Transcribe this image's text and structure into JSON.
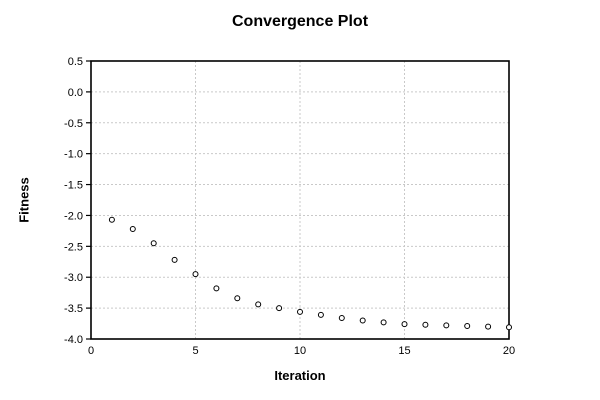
{
  "chart_data": {
    "type": "scatter",
    "title": "Convergence Plot",
    "xlabel": "Iteration",
    "ylabel": "Fitness",
    "x": [
      1,
      2,
      3,
      4,
      5,
      6,
      7,
      8,
      9,
      10,
      11,
      12,
      13,
      14,
      15,
      16,
      17,
      18,
      19,
      20
    ],
    "y": [
      -2.07,
      -2.22,
      -2.45,
      -2.72,
      -2.95,
      -3.18,
      -3.34,
      -3.44,
      -3.5,
      -3.56,
      -3.61,
      -3.66,
      -3.7,
      -3.73,
      -3.76,
      -3.77,
      -3.78,
      -3.79,
      -3.8,
      -3.81
    ],
    "xlim": [
      0,
      20
    ],
    "ylim": [
      -4.0,
      0.5
    ],
    "xticks": [
      0,
      5,
      10,
      15,
      20
    ],
    "xtick_labels": [
      "0",
      "5",
      "10",
      "15",
      "20"
    ],
    "yticks": [
      0.5,
      0.0,
      -0.5,
      -1.0,
      -1.5,
      -2.0,
      -2.5,
      -3.0,
      -3.5,
      -4.0
    ],
    "ytick_labels": [
      "0.5",
      "0.0",
      "-0.5",
      "-1.0",
      "-1.5",
      "-2.0",
      "-2.5",
      "-3.0",
      "-3.5",
      "-4.0"
    ],
    "grid": true,
    "grid_style": "dotted",
    "legend": "none",
    "marker": "open-circle",
    "colors": {
      "background": "#ffffff",
      "text": "#000000",
      "axis": "#000000",
      "grid": "#c9c9c9",
      "marker_stroke": "#000000",
      "marker_fill": "#ffffff"
    }
  }
}
